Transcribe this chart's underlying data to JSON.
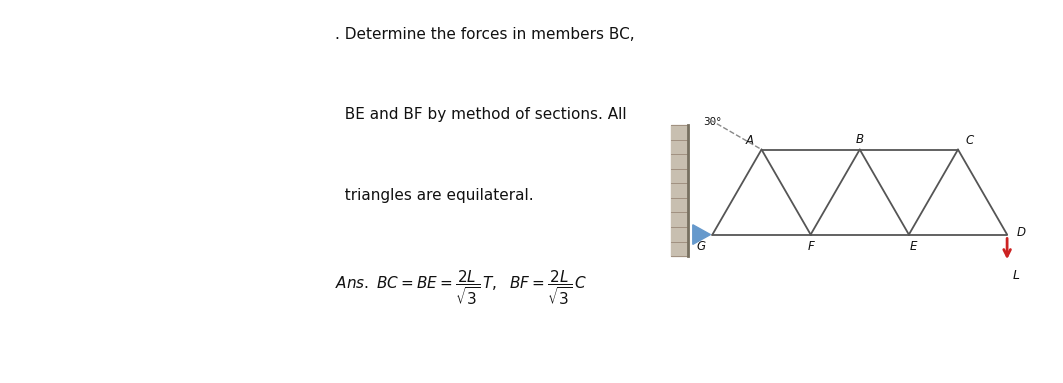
{
  "bg_color": "#ffffff",
  "truss_color": "#555555",
  "support_color": "#6699cc",
  "arrow_color": "#cc2222",
  "text_color": "#111111",
  "title_line1": ". Determine the forces in members BC,",
  "title_line2": "  BE and BF by method of sections. All",
  "title_line3": "  triangles are equilateral.",
  "angle_30_label": "30°",
  "load_label": "L",
  "node_label_A": "A",
  "node_label_B": "B",
  "node_label_C": "C",
  "node_label_G": "G",
  "node_label_F": "F",
  "node_label_E": "E",
  "node_label_D": "D",
  "truss_lw": 1.3
}
